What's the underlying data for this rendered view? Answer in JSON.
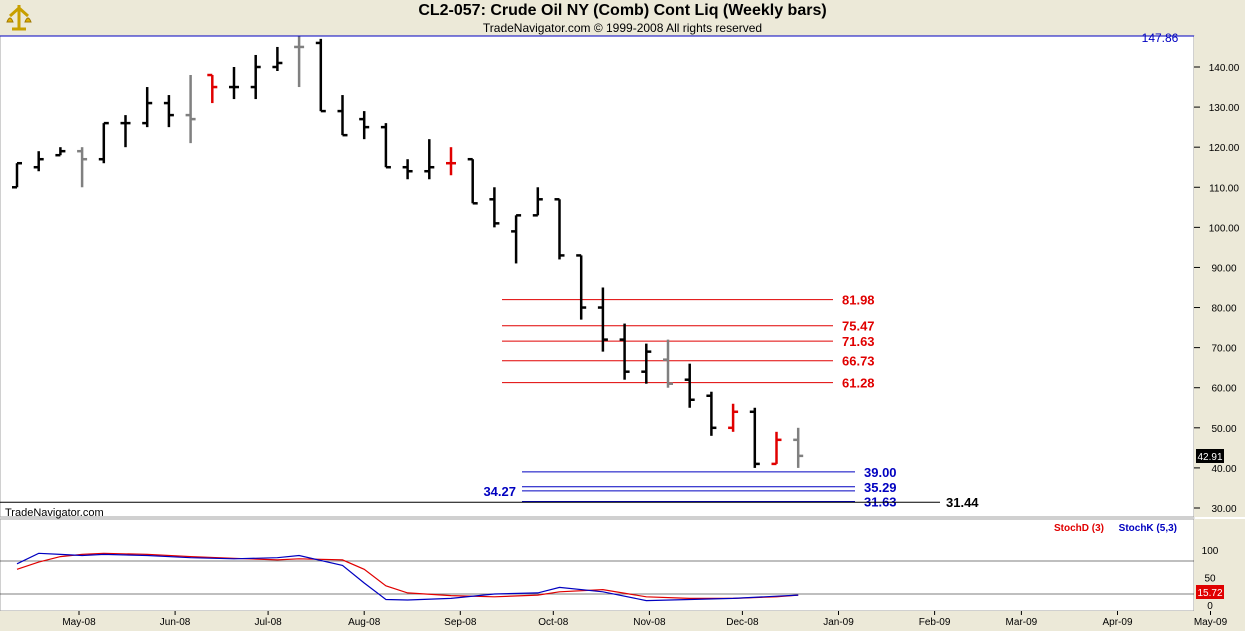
{
  "header": {
    "title": "CL2-057:  Crude Oil NY (Comb) Cont Liq  (Weekly bars)",
    "subtitle": "TradeNavigator.com © 1999-2008 All rights reserved"
  },
  "watermark": "TradeNavigator.com",
  "colors": {
    "up": "#000000",
    "down_red": "#e00000",
    "neutral_gray": "#808080",
    "fib_red": "#e00000",
    "support_blue": "#0000c0",
    "stoch_d": "#e00000",
    "stoch_k": "#0000c0",
    "header_bg": "#ece9d8",
    "panel_bg": "#ece9d8"
  },
  "chart_data": [
    {
      "type": "ohlc",
      "title": "CL2-057:  Crude Oil NY (Comb) Cont Liq  (Weekly bars)",
      "ylim": [
        27,
        147.86
      ],
      "yticks": [
        30,
        40,
        50,
        60,
        70,
        80,
        90,
        100,
        110,
        120,
        130,
        140
      ],
      "ytick_labels": [
        "30.00",
        "40.00",
        "50.00",
        "60.00",
        "70.00",
        "80.00",
        "90.00",
        "100.00",
        "110.00",
        "120.00",
        "130.00",
        "140.00"
      ],
      "x_labels": [
        "May-08",
        "Jun-08",
        "Jul-08",
        "Aug-08",
        "Sep-08",
        "Oct-08",
        "Nov-08",
        "Dec-08",
        "Jan-09",
        "Feb-09",
        "Mar-09",
        "Apr-09",
        "May-09"
      ],
      "top_value_label": "147.86",
      "last_price_label": "42.91",
      "bars": [
        {
          "x": "2008-04-11",
          "o": 110,
          "h": 116,
          "l": 110,
          "c": 116,
          "color": "black"
        },
        {
          "x": "2008-04-18",
          "o": 115,
          "h": 119,
          "l": 114,
          "c": 117,
          "color": "black"
        },
        {
          "x": "2008-04-25",
          "o": 118,
          "h": 120,
          "l": 118,
          "c": 119,
          "color": "black"
        },
        {
          "x": "2008-05-02",
          "o": 119,
          "h": 120,
          "l": 110,
          "c": 117,
          "color": "gray"
        },
        {
          "x": "2008-05-09",
          "o": 117,
          "h": 126,
          "l": 116,
          "c": 126,
          "color": "black"
        },
        {
          "x": "2008-05-16",
          "o": 126,
          "h": 128,
          "l": 120,
          "c": 126,
          "color": "black"
        },
        {
          "x": "2008-05-23",
          "o": 126,
          "h": 135,
          "l": 125,
          "c": 131,
          "color": "black"
        },
        {
          "x": "2008-05-30",
          "o": 131,
          "h": 133,
          "l": 125,
          "c": 128,
          "color": "black"
        },
        {
          "x": "2008-06-06",
          "o": 128,
          "h": 138,
          "l": 121,
          "c": 127,
          "color": "gray"
        },
        {
          "x": "2008-06-13",
          "o": 138,
          "h": 138,
          "l": 131,
          "c": 135,
          "color": "red"
        },
        {
          "x": "2008-06-20",
          "o": 135,
          "h": 140,
          "l": 132,
          "c": 135,
          "color": "black"
        },
        {
          "x": "2008-06-27",
          "o": 135,
          "h": 143,
          "l": 132,
          "c": 140,
          "color": "black"
        },
        {
          "x": "2008-07-04",
          "o": 140,
          "h": 145,
          "l": 139,
          "c": 141,
          "color": "black"
        },
        {
          "x": "2008-07-11",
          "o": 145,
          "h": 147.86,
          "l": 135,
          "c": 145,
          "color": "gray"
        },
        {
          "x": "2008-07-18",
          "o": 146,
          "h": 147,
          "l": 129,
          "c": 129,
          "color": "black"
        },
        {
          "x": "2008-07-25",
          "o": 129,
          "h": 133,
          "l": 123,
          "c": 123,
          "color": "black"
        },
        {
          "x": "2008-08-01",
          "o": 127,
          "h": 129,
          "l": 122,
          "c": 125,
          "color": "black"
        },
        {
          "x": "2008-08-08",
          "o": 125,
          "h": 126,
          "l": 115,
          "c": 115,
          "color": "black"
        },
        {
          "x": "2008-08-15",
          "o": 115,
          "h": 117,
          "l": 112,
          "c": 114,
          "color": "black"
        },
        {
          "x": "2008-08-22",
          "o": 114,
          "h": 122,
          "l": 112,
          "c": 115,
          "color": "black"
        },
        {
          "x": "2008-08-29",
          "o": 116,
          "h": 120,
          "l": 113,
          "c": 116,
          "color": "red"
        },
        {
          "x": "2008-09-05",
          "o": 117,
          "h": 117,
          "l": 106,
          "c": 106,
          "color": "black"
        },
        {
          "x": "2008-09-12",
          "o": 107,
          "h": 110,
          "l": 100,
          "c": 101,
          "color": "black"
        },
        {
          "x": "2008-09-19",
          "o": 99,
          "h": 103,
          "l": 91,
          "c": 103,
          "color": "black"
        },
        {
          "x": "2008-09-26",
          "o": 103,
          "h": 110,
          "l": 103,
          "c": 107,
          "color": "black"
        },
        {
          "x": "2008-10-03",
          "o": 107,
          "h": 107,
          "l": 92,
          "c": 93,
          "color": "black"
        },
        {
          "x": "2008-10-10",
          "o": 93,
          "h": 93,
          "l": 77,
          "c": 80,
          "color": "black"
        },
        {
          "x": "2008-10-17",
          "o": 80,
          "h": 85,
          "l": 69,
          "c": 72,
          "color": "black"
        },
        {
          "x": "2008-10-24",
          "o": 72,
          "h": 76,
          "l": 62,
          "c": 64,
          "color": "black"
        },
        {
          "x": "2008-10-31",
          "o": 64,
          "h": 71,
          "l": 61,
          "c": 69,
          "color": "black"
        },
        {
          "x": "2008-11-07",
          "o": 67,
          "h": 72,
          "l": 60,
          "c": 61,
          "color": "gray"
        },
        {
          "x": "2008-11-14",
          "o": 62,
          "h": 66,
          "l": 55,
          "c": 57,
          "color": "black"
        },
        {
          "x": "2008-11-21",
          "o": 58,
          "h": 59,
          "l": 48,
          "c": 50,
          "color": "black"
        },
        {
          "x": "2008-11-28",
          "o": 50,
          "h": 56,
          "l": 49,
          "c": 54,
          "color": "red"
        },
        {
          "x": "2008-12-05",
          "o": 54,
          "h": 55,
          "l": 40,
          "c": 41,
          "color": "black"
        },
        {
          "x": "2008-12-12",
          "o": 41,
          "h": 49,
          "l": 41,
          "c": 47,
          "color": "red"
        },
        {
          "x": "2008-12-19",
          "o": 47,
          "h": 50,
          "l": 40,
          "c": 43,
          "color": "gray"
        }
      ],
      "fib_levels": [
        {
          "value": 81.98,
          "label": "81.98"
        },
        {
          "value": 75.47,
          "label": "75.47"
        },
        {
          "value": 71.63,
          "label": "71.63"
        },
        {
          "value": 66.73,
          "label": "66.73"
        },
        {
          "value": 61.28,
          "label": "61.28"
        }
      ],
      "support_levels": [
        {
          "value": 39.0,
          "label": "39.00"
        },
        {
          "value": 35.29,
          "label": "35.29"
        },
        {
          "value": 34.27,
          "label": "34.27"
        },
        {
          "value": 31.63,
          "label": "31.63"
        }
      ],
      "black_level": {
        "value": 31.44,
        "label": "31.44"
      }
    },
    {
      "type": "line",
      "title": "",
      "ylim": [
        0,
        100
      ],
      "yticks": [
        0,
        50,
        100
      ],
      "ytick_labels": [
        "0",
        "50",
        "100"
      ],
      "last_value_label": "15.72",
      "series": [
        {
          "name": "StochD (3)",
          "color": "#e00000",
          "x": [
            "2008-04-11",
            "2008-04-18",
            "2008-04-25",
            "2008-05-02",
            "2008-05-09",
            "2008-05-23",
            "2008-06-06",
            "2008-06-20",
            "2008-07-04",
            "2008-07-11",
            "2008-07-25",
            "2008-08-01",
            "2008-08-08",
            "2008-08-15",
            "2008-08-29",
            "2008-09-12",
            "2008-09-26",
            "2008-10-03",
            "2008-10-17",
            "2008-10-31",
            "2008-11-14",
            "2008-11-28",
            "2008-12-12",
            "2008-12-19"
          ],
          "values": [
            65,
            78,
            88,
            92,
            94,
            92,
            88,
            85,
            82,
            84,
            82,
            65,
            35,
            22,
            17,
            15,
            18,
            24,
            28,
            15,
            12,
            12,
            15,
            18
          ]
        },
        {
          "name": "StochK (5,3)",
          "color": "#0000c0",
          "x": [
            "2008-04-11",
            "2008-04-18",
            "2008-04-25",
            "2008-05-02",
            "2008-05-09",
            "2008-05-23",
            "2008-06-06",
            "2008-06-20",
            "2008-07-04",
            "2008-07-11",
            "2008-07-25",
            "2008-08-01",
            "2008-08-08",
            "2008-08-15",
            "2008-08-29",
            "2008-09-12",
            "2008-09-26",
            "2008-10-03",
            "2008-10-17",
            "2008-10-31",
            "2008-11-14",
            "2008-11-28",
            "2008-12-12",
            "2008-12-19"
          ],
          "values": [
            75,
            94,
            92,
            90,
            92,
            90,
            86,
            84,
            86,
            90,
            72,
            40,
            10,
            9,
            12,
            20,
            22,
            32,
            24,
            8,
            10,
            12,
            16,
            18
          ]
        }
      ],
      "threshold_lines": [
        80,
        20
      ]
    }
  ]
}
